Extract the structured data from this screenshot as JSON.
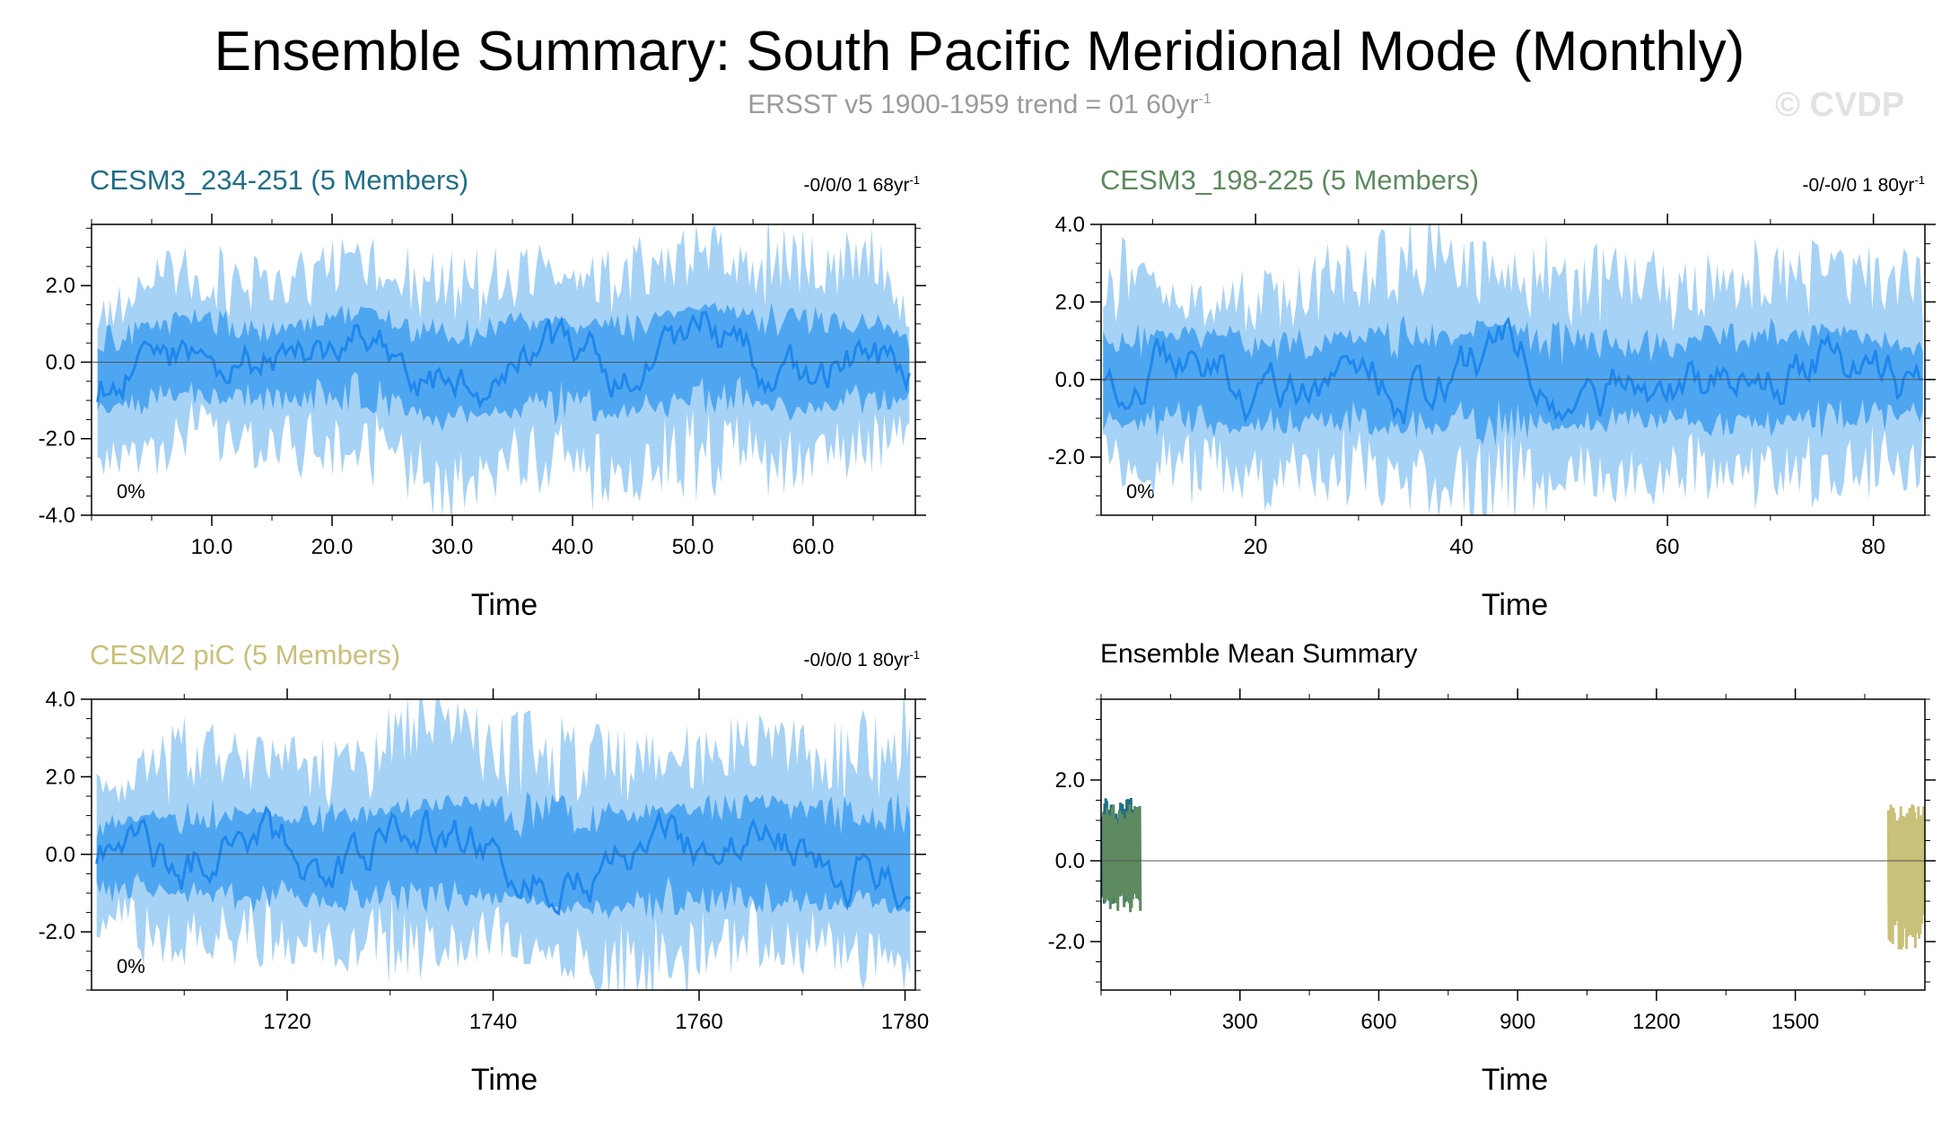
{
  "header": {
    "title": "Ensemble Summary: South Pacific Meridional Mode (Monthly)",
    "subtitle_main": "ERSST v5 1900-1959 trend = 01 60yr",
    "subtitle_sup": "-1",
    "watermark": "© CVDP"
  },
  "chart_data": [
    {
      "type": "line",
      "title": "CESM3_234-251 (5 Members)",
      "title_color": "#1f6e86",
      "trend_main": "-0/0/0 1 68yr",
      "trend_sup": "-1",
      "annotation": "0%",
      "xlabel": "Time",
      "xlim": [
        0,
        68.5
      ],
      "ylim": [
        -4.0,
        3.6
      ],
      "xticks": [
        10.0,
        20.0,
        30.0,
        40.0,
        50.0,
        60.0
      ],
      "xtick_labels": [
        "10.0",
        "20.0",
        "30.0",
        "40.0",
        "50.0",
        "60.0"
      ],
      "yticks": [
        -4.0,
        -2.0,
        0.0,
        2.0
      ],
      "ytick_labels": [
        "-4.0",
        "-2.0",
        "0.0",
        "2.0"
      ],
      "series": [
        {
          "name": "ensemble max-min range",
          "color": "#a6d2f6",
          "x": [
            0.5,
            7.7,
            14.9,
            22.1,
            29.3,
            36.4,
            43.6,
            50.8,
            58.0,
            65.2,
            68.0
          ],
          "upper": [
            1.4,
            2.7,
            2.1,
            3.0,
            2.2,
            2.6,
            2.3,
            3.2,
            3.0,
            2.9,
            1.2
          ],
          "lower": [
            -2.9,
            -2.1,
            -2.3,
            -2.5,
            -3.6,
            -2.7,
            -3.2,
            -2.8,
            -3.0,
            -2.3,
            -1.9
          ]
        },
        {
          "name": "ensemble interquartile range",
          "color": "#4fa6f0",
          "x": [
            0.5,
            7.7,
            14.9,
            22.1,
            29.3,
            36.4,
            43.6,
            50.8,
            58.0,
            65.2,
            68.0
          ],
          "upper": [
            0.6,
            1.3,
            0.9,
            1.4,
            0.8,
            1.2,
            1.0,
            1.5,
            1.3,
            1.1,
            0.5
          ],
          "lower": [
            -1.3,
            -0.9,
            -1.1,
            -1.0,
            -1.6,
            -1.2,
            -1.4,
            -1.0,
            -1.3,
            -1.1,
            -0.9
          ]
        },
        {
          "name": "ensemble mean",
          "color": "#1e87ec",
          "x": [
            0.5,
            7.7,
            14.9,
            22.1,
            29.3,
            36.4,
            43.6,
            50.8,
            58.0,
            65.2,
            68.0
          ],
          "values": [
            -0.6,
            0.4,
            -0.2,
            0.6,
            -0.8,
            0.3,
            -0.4,
            0.7,
            -0.3,
            0.2,
            -0.5
          ]
        }
      ]
    },
    {
      "type": "line",
      "title": "CESM3_198-225 (5 Members)",
      "title_color": "#5d8a5e",
      "trend_main": "-0/-0/0 1 80yr",
      "trend_sup": "-1",
      "annotation": "0%",
      "xlabel": "Time",
      "xlim": [
        5,
        85
      ],
      "ylim": [
        -3.5,
        4.0
      ],
      "xticks": [
        20,
        40,
        60,
        80
      ],
      "xtick_labels": [
        "20",
        "40",
        "60",
        "80"
      ],
      "yticks": [
        -2.0,
        0.0,
        2.0,
        4.0
      ],
      "ytick_labels": [
        "-2.0",
        "0.0",
        "2.0",
        "4.0"
      ],
      "series": [
        {
          "name": "ensemble max-min range",
          "color": "#a6d2f6",
          "x": [
            5.2,
            13.0,
            20.8,
            28.6,
            36.4,
            44.2,
            52.0,
            59.8,
            67.6,
            75.4,
            84.8
          ],
          "upper": [
            3.1,
            2.2,
            2.4,
            2.9,
            3.5,
            3.0,
            2.9,
            2.6,
            3.1,
            3.0,
            2.7
          ],
          "lower": [
            -2.3,
            -2.6,
            -2.8,
            -2.5,
            -2.9,
            -3.3,
            -2.6,
            -2.7,
            -2.9,
            -2.5,
            -2.3
          ]
        },
        {
          "name": "ensemble interquartile range",
          "color": "#4fa6f0",
          "x": [
            5.2,
            13.0,
            20.8,
            28.6,
            36.4,
            44.2,
            52.0,
            59.8,
            67.6,
            75.4,
            84.8
          ],
          "upper": [
            1.2,
            1.3,
            1.0,
            1.2,
            1.3,
            1.4,
            1.1,
            1.0,
            1.3,
            1.4,
            0.9
          ],
          "lower": [
            -1.3,
            -1.1,
            -1.3,
            -1.2,
            -1.4,
            -1.3,
            -1.2,
            -1.1,
            -1.3,
            -1.2,
            -1.0
          ]
        },
        {
          "name": "ensemble mean",
          "color": "#1e87ec",
          "x": [
            5.2,
            13.0,
            20.8,
            28.6,
            36.4,
            44.2,
            52.0,
            59.8,
            67.6,
            75.4,
            84.8
          ],
          "values": [
            0.4,
            0.6,
            -0.5,
            0.2,
            -0.4,
            0.8,
            -0.6,
            0.1,
            -0.3,
            0.7,
            -0.5
          ]
        }
      ]
    },
    {
      "type": "line",
      "title": "CESM2 piC (5 Members)",
      "title_color": "#c9c07a",
      "trend_main": "-0/0/0 1 80yr",
      "trend_sup": "-1",
      "annotation": "0%",
      "xlabel": "Time",
      "xlim": [
        1701,
        1781
      ],
      "ylim": [
        -3.5,
        4.0
      ],
      "xticks": [
        1720,
        1740,
        1760,
        1780
      ],
      "xtick_labels": [
        "1720",
        "1740",
        "1760",
        "1780"
      ],
      "yticks": [
        -2.0,
        0.0,
        2.0,
        4.0
      ],
      "ytick_labels": [
        "-2.0",
        "0.0",
        "2.0",
        "4.0"
      ],
      "series": [
        {
          "name": "ensemble max-min range",
          "color": "#a6d2f6",
          "x": [
            1701.5,
            1709.4,
            1717.3,
            1725.2,
            1733.1,
            1741.0,
            1748.9,
            1756.8,
            1764.7,
            1772.6,
            1780.5
          ],
          "upper": [
            1.8,
            2.8,
            2.6,
            2.3,
            3.8,
            3.0,
            2.7,
            2.6,
            3.2,
            2.7,
            3.4
          ],
          "lower": [
            -1.9,
            -2.4,
            -2.2,
            -2.5,
            -2.6,
            -2.3,
            -3.0,
            -3.2,
            -2.4,
            -2.6,
            -3.1
          ]
        },
        {
          "name": "ensemble interquartile range",
          "color": "#4fa6f0",
          "x": [
            1701.5,
            1709.4,
            1717.3,
            1725.2,
            1733.1,
            1741.0,
            1748.9,
            1756.8,
            1764.7,
            1772.6,
            1780.5
          ],
          "upper": [
            0.8,
            1.2,
            1.1,
            1.0,
            1.4,
            1.3,
            1.1,
            1.2,
            1.4,
            1.2,
            1.3
          ],
          "lower": [
            -1.0,
            -1.1,
            -1.2,
            -1.3,
            -1.2,
            -1.1,
            -1.5,
            -1.4,
            -1.2,
            -1.3,
            -1.5
          ]
        },
        {
          "name": "ensemble mean",
          "color": "#1e87ec",
          "x": [
            1701.5,
            1709.4,
            1717.3,
            1725.2,
            1733.1,
            1741.0,
            1748.9,
            1756.8,
            1764.7,
            1772.6,
            1780.5
          ],
          "values": [
            0.2,
            -0.3,
            0.5,
            -0.5,
            0.6,
            0.1,
            -0.7,
            0.3,
            0.4,
            -0.2,
            -0.6
          ]
        }
      ]
    },
    {
      "type": "line",
      "title": "Ensemble Mean Summary",
      "title_color": "#000000",
      "xlabel": "Time",
      "xlim": [
        0,
        1780
      ],
      "ylim": [
        -3.2,
        4.0
      ],
      "xticks": [
        300,
        600,
        900,
        1200,
        1500
      ],
      "xtick_labels": [
        "300",
        "600",
        "900",
        "1200",
        "1500"
      ],
      "yticks": [
        -2.0,
        0.0,
        2.0
      ],
      "ytick_labels": [
        "-2.0",
        "0.0",
        "2.0"
      ],
      "series": [
        {
          "name": "CESM3_234-251",
          "color": "#1f6e86",
          "x": [
            1,
            68
          ],
          "upper": 1.6,
          "lower": -1.1
        },
        {
          "name": "CESM3_198-225",
          "color": "#5d8a5e",
          "x": [
            5,
            85
          ],
          "upper": 1.4,
          "lower": -1.3
        },
        {
          "name": "CESM2 piC",
          "color": "#c9c07a",
          "x": [
            1701,
            1781
          ],
          "upper": 1.4,
          "lower": -2.2
        }
      ]
    }
  ]
}
